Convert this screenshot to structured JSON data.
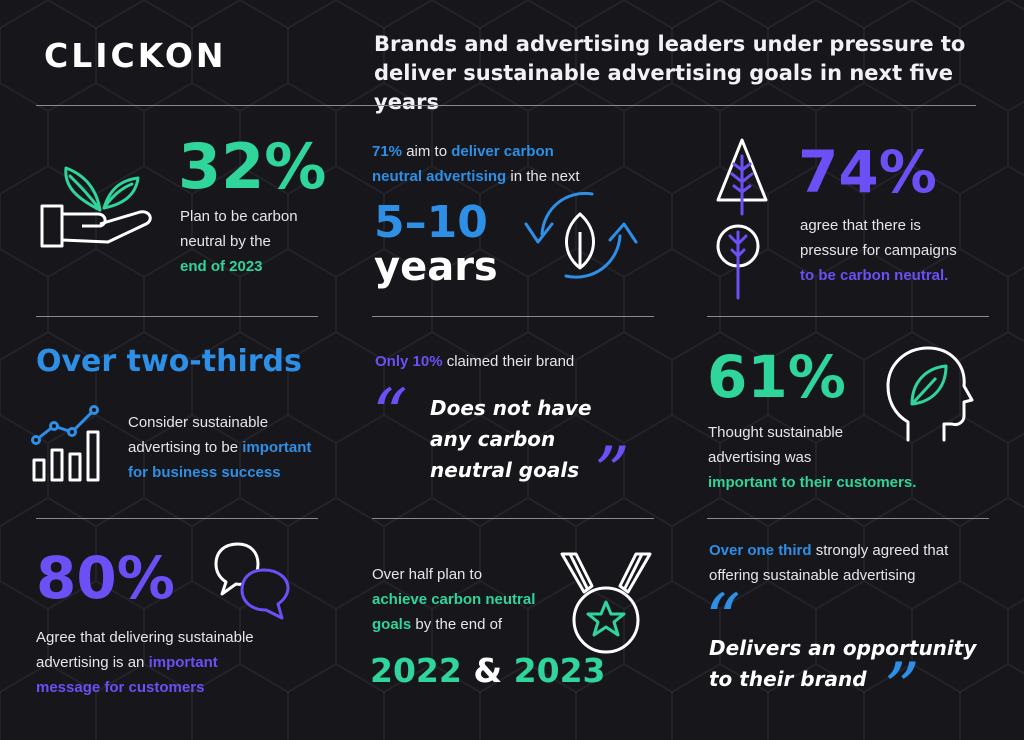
{
  "brand": {
    "logo": "CLICKON"
  },
  "header": {
    "title": "Brands and advertising leaders under pressure to deliver sustainable advertising goals in next five years"
  },
  "colors": {
    "green": "#2fd59a",
    "purple": "#6c4ff5",
    "blue": "#2e8fe6",
    "background": "#16161b"
  },
  "stats": {
    "s1": {
      "value": "32%",
      "line1": "Plan to be carbon",
      "line2": "neutral by the",
      "highlight": "end of 2023",
      "icon": "plant-hand-icon"
    },
    "s2": {
      "lead_pct": "71%",
      "lead_mid": "aim to",
      "lead_hl1": "deliver carbon",
      "lead_hl2": "neutral advertising",
      "lead_end": "in the next",
      "value": "5–10",
      "unit": "years",
      "icon": "recycle-leaf-icon"
    },
    "s3": {
      "value": "74%",
      "line1": "agree that there is",
      "line2": "pressure for campaigns",
      "highlight": "to be carbon neutral.",
      "icon": "trees-icon"
    },
    "s4": {
      "headline": "Over two-thirds",
      "line1": "Consider sustainable",
      "line2a": "advertising to be",
      "line2b": "important",
      "highlight": "for business success",
      "icon": "growth-chart-icon"
    },
    "s5": {
      "lead_pct": "Only 10%",
      "lead_end": "claimed their brand",
      "q1": "Does not have",
      "q2": "any carbon",
      "q3": "neutral goals"
    },
    "s6": {
      "value": "61%",
      "line1": "Thought sustainable",
      "line2": "advertising was",
      "highlight": "important to their customers.",
      "icon": "head-leaf-icon"
    },
    "s7": {
      "value": "80%",
      "line1": "Agree that delivering sustainable",
      "line2a": "advertising is an",
      "line2b": "important",
      "highlight": "message for customers",
      "icon": "speech-bubbles-icon"
    },
    "s8": {
      "line1": "Over half plan to",
      "hl1": "achieve carbon neutral",
      "hl2": "goals",
      "line3": "by the end of",
      "year1": "2022",
      "amp": "&",
      "year2": "2023",
      "icon": "star-medal-icon"
    },
    "s9": {
      "lead_hl": "Over one third",
      "lead_end": "strongly agreed that",
      "line2": "offering sustainable advertising",
      "q1": "Delivers an opportunity",
      "q2": "to their brand"
    }
  },
  "quote_marks": {
    "open": "“",
    "close": "”"
  }
}
